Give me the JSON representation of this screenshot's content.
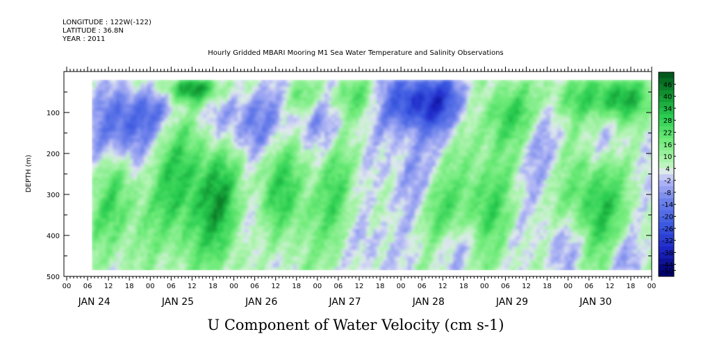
{
  "header": {
    "longitude": "LONGITUDE : 122W(-122)",
    "latitude": "LATITUDE : 36.8N",
    "year": "YEAR : 2011"
  },
  "chart_data": {
    "type": "heatmap",
    "title": "Hourly Gridded MBARI Mooring M1 Sea Water Temperature and Salinity Observations",
    "variable_label": "U Component of Water Velocity (cm s-1)",
    "ylabel": "DEPTH (m)",
    "ylim": [
      500,
      0
    ],
    "y_axis_inverted": true,
    "y_ticks": [
      100,
      200,
      300,
      400,
      500
    ],
    "x_hour_labels": [
      "00",
      "06",
      "12",
      "18",
      "00",
      "06",
      "12",
      "18",
      "00",
      "06",
      "12",
      "18",
      "00",
      "06",
      "12",
      "18",
      "00",
      "06",
      "12",
      "18",
      "00",
      "06",
      "12",
      "18",
      "00",
      "06",
      "12",
      "18",
      "00"
    ],
    "x_day_labels": [
      "JAN 24",
      "JAN 25",
      "JAN 26",
      "JAN 27",
      "JAN 28",
      "JAN 29",
      "JAN 30"
    ],
    "x_range_days": [
      0,
      7
    ],
    "data_x_range_days": [
      0.3,
      7
    ],
    "data_depth_range": [
      20,
      485
    ],
    "colorbar": {
      "min": -50,
      "max": 50,
      "tick_labels": [
        "46",
        "40",
        "34",
        "28",
        "22",
        "16",
        "10",
        "4",
        "-2",
        "-8",
        "-14",
        "-20",
        "-26",
        "-32",
        "-38",
        "-44",
        "-50"
      ]
    },
    "blue_patches": [
      {
        "day": 0.65,
        "depth": 150,
        "rx": 0.35,
        "ry": 80,
        "v": -25
      },
      {
        "day": 0.95,
        "depth": 80,
        "rx": 0.45,
        "ry": 60,
        "v": -18
      },
      {
        "day": 2.15,
        "depth": 120,
        "rx": 0.45,
        "ry": 90,
        "v": -20
      },
      {
        "day": 2.3,
        "depth": 380,
        "rx": 0.25,
        "ry": 110,
        "v": -12
      },
      {
        "day": 3.0,
        "depth": 110,
        "rx": 0.35,
        "ry": 80,
        "v": -14
      },
      {
        "day": 4.25,
        "depth": 70,
        "rx": 0.5,
        "ry": 70,
        "v": -40
      },
      {
        "day": 4.1,
        "depth": 260,
        "rx": 0.3,
        "ry": 120,
        "v": -14
      },
      {
        "day": 4.7,
        "depth": 420,
        "rx": 0.4,
        "ry": 70,
        "v": -12
      },
      {
        "day": 5.6,
        "depth": 150,
        "rx": 0.3,
        "ry": 120,
        "v": -12
      },
      {
        "day": 6.4,
        "depth": 180,
        "rx": 0.35,
        "ry": 60,
        "v": -10
      },
      {
        "day": 5.95,
        "depth": 420,
        "rx": 0.3,
        "ry": 70,
        "v": -14
      },
      {
        "day": 6.65,
        "depth": 450,
        "rx": 0.25,
        "ry": 50,
        "v": -12
      },
      {
        "day": 0.35,
        "depth": 300,
        "rx": 0.15,
        "ry": 120,
        "v": -8
      },
      {
        "day": 3.6,
        "depth": 420,
        "rx": 0.25,
        "ry": 80,
        "v": -10
      }
    ],
    "green_patches": [
      {
        "day": 0.5,
        "depth": 320,
        "rx": 0.35,
        "ry": 140,
        "v": 20
      },
      {
        "day": 1.4,
        "depth": 280,
        "rx": 0.4,
        "ry": 170,
        "v": 26
      },
      {
        "day": 1.85,
        "depth": 330,
        "rx": 0.25,
        "ry": 150,
        "v": 22
      },
      {
        "day": 1.5,
        "depth": 40,
        "rx": 0.4,
        "ry": 30,
        "v": 32
      },
      {
        "day": 2.55,
        "depth": 300,
        "rx": 0.35,
        "ry": 140,
        "v": 24
      },
      {
        "day": 3.2,
        "depth": 300,
        "rx": 0.25,
        "ry": 150,
        "v": 16
      },
      {
        "day": 3.4,
        "depth": 60,
        "rx": 0.35,
        "ry": 50,
        "v": 18
      },
      {
        "day": 4.45,
        "depth": 340,
        "rx": 0.35,
        "ry": 100,
        "v": 18
      },
      {
        "day": 5.0,
        "depth": 330,
        "rx": 0.3,
        "ry": 160,
        "v": 20
      },
      {
        "day": 5.3,
        "depth": 100,
        "rx": 0.35,
        "ry": 80,
        "v": 26
      },
      {
        "day": 6.3,
        "depth": 320,
        "rx": 0.35,
        "ry": 160,
        "v": 26
      },
      {
        "day": 6.6,
        "depth": 60,
        "rx": 0.3,
        "ry": 50,
        "v": 34
      },
      {
        "day": 6.0,
        "depth": 60,
        "rx": 0.3,
        "ry": 50,
        "v": 16
      },
      {
        "day": 2.8,
        "depth": 60,
        "rx": 0.2,
        "ry": 40,
        "v": 16
      }
    ]
  }
}
